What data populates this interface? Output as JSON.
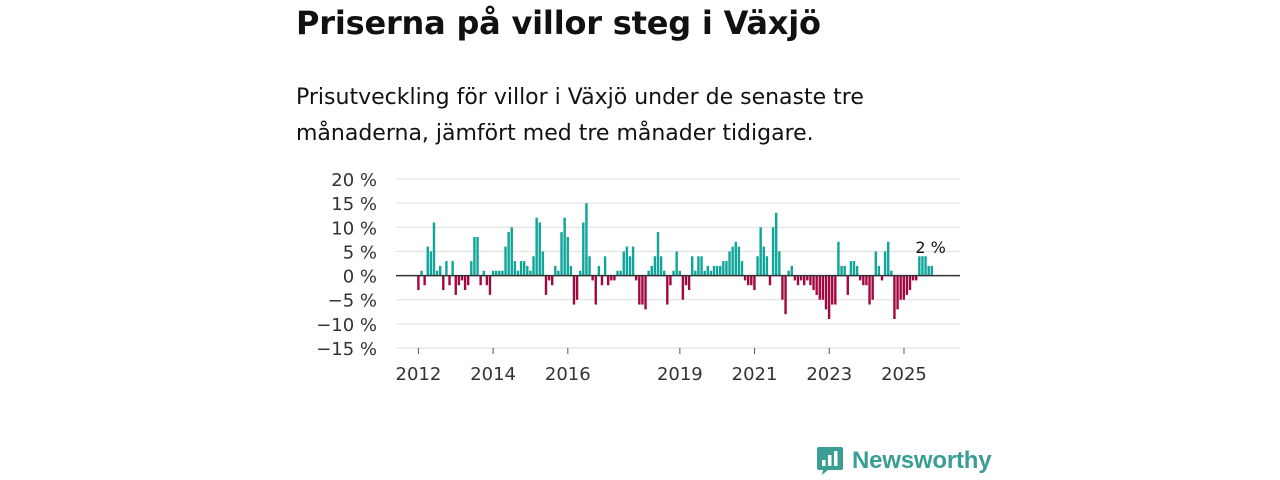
{
  "page": {
    "title": "Priserna på villor steg i Växjö",
    "subtitle": "Prisutveckling för villor i Växjö under de senaste tre månaderna, jämfört med tre månader tidigare.",
    "brand": "Newsworthy"
  },
  "colors": {
    "positive": "#0fa59a",
    "negative": "#a3073f",
    "grid": "#dddddd",
    "zero_line": "#333333",
    "brand": "#3a9e94"
  },
  "chart_data": {
    "type": "bar",
    "title": "Priserna på villor steg i Växjö",
    "ylabel": "",
    "xlabel": "",
    "ylim": [
      -15,
      20
    ],
    "yticks": [
      20,
      15,
      10,
      5,
      0,
      -5,
      -10,
      -15
    ],
    "ytick_labels": [
      "20 %",
      "15 %",
      "10 %",
      "5 %",
      "0 %",
      "−5 %",
      "−10 %",
      "−15 %"
    ],
    "x_domain": [
      2011.4,
      2026.5
    ],
    "xticks": [
      2012,
      2014,
      2016,
      2019,
      2021,
      2023,
      2025
    ],
    "xtick_labels": [
      "2012",
      "2014",
      "2016",
      "2019",
      "2021",
      "2023",
      "2025"
    ],
    "annotation": {
      "text": "2 %",
      "x": 2025.5,
      "value": 2
    },
    "series": [
      {
        "name": "Prisutveckling",
        "start": 2012.0,
        "step": 0.0833,
        "values": [
          -3,
          1,
          -2,
          6,
          5,
          11,
          1,
          2,
          -3,
          3,
          -2,
          3,
          -4,
          -2,
          -1,
          -3,
          -2,
          3,
          8,
          8,
          -2,
          1,
          -2,
          -4,
          1,
          1,
          1,
          1,
          6,
          9,
          10,
          3,
          1,
          3,
          3,
          2,
          1,
          4,
          12,
          11,
          5,
          -4,
          -1,
          -2,
          2,
          1,
          9,
          12,
          8,
          2,
          -6,
          -5,
          1,
          11,
          15,
          4,
          -1,
          -6,
          2,
          -2,
          4,
          -2,
          -1,
          -1,
          1,
          1,
          5,
          6,
          4,
          6,
          -1,
          -6,
          -6,
          -7,
          1,
          2,
          4,
          9,
          4,
          1,
          -6,
          -2,
          1,
          5,
          1,
          -5,
          -2,
          -3,
          4,
          1,
          4,
          4,
          1,
          2,
          1,
          2,
          2,
          2,
          3,
          3,
          5,
          6,
          7,
          6,
          3,
          -1,
          -2,
          -2,
          -3,
          4,
          10,
          6,
          4,
          -2,
          10,
          13,
          5,
          -5,
          -8,
          1,
          2,
          -1,
          -2,
          -1,
          -2,
          -1,
          -2,
          -3,
          -4,
          -5,
          -5,
          -7,
          -9,
          -6,
          -6,
          7,
          2,
          2,
          -4,
          3,
          3,
          2,
          -1,
          -2,
          -2,
          -6,
          -5,
          5,
          2,
          -1,
          5,
          7,
          1,
          -9,
          -7,
          -5,
          -5,
          -4,
          -3,
          -1,
          -1,
          4,
          4,
          4,
          2,
          2
        ]
      }
    ]
  }
}
